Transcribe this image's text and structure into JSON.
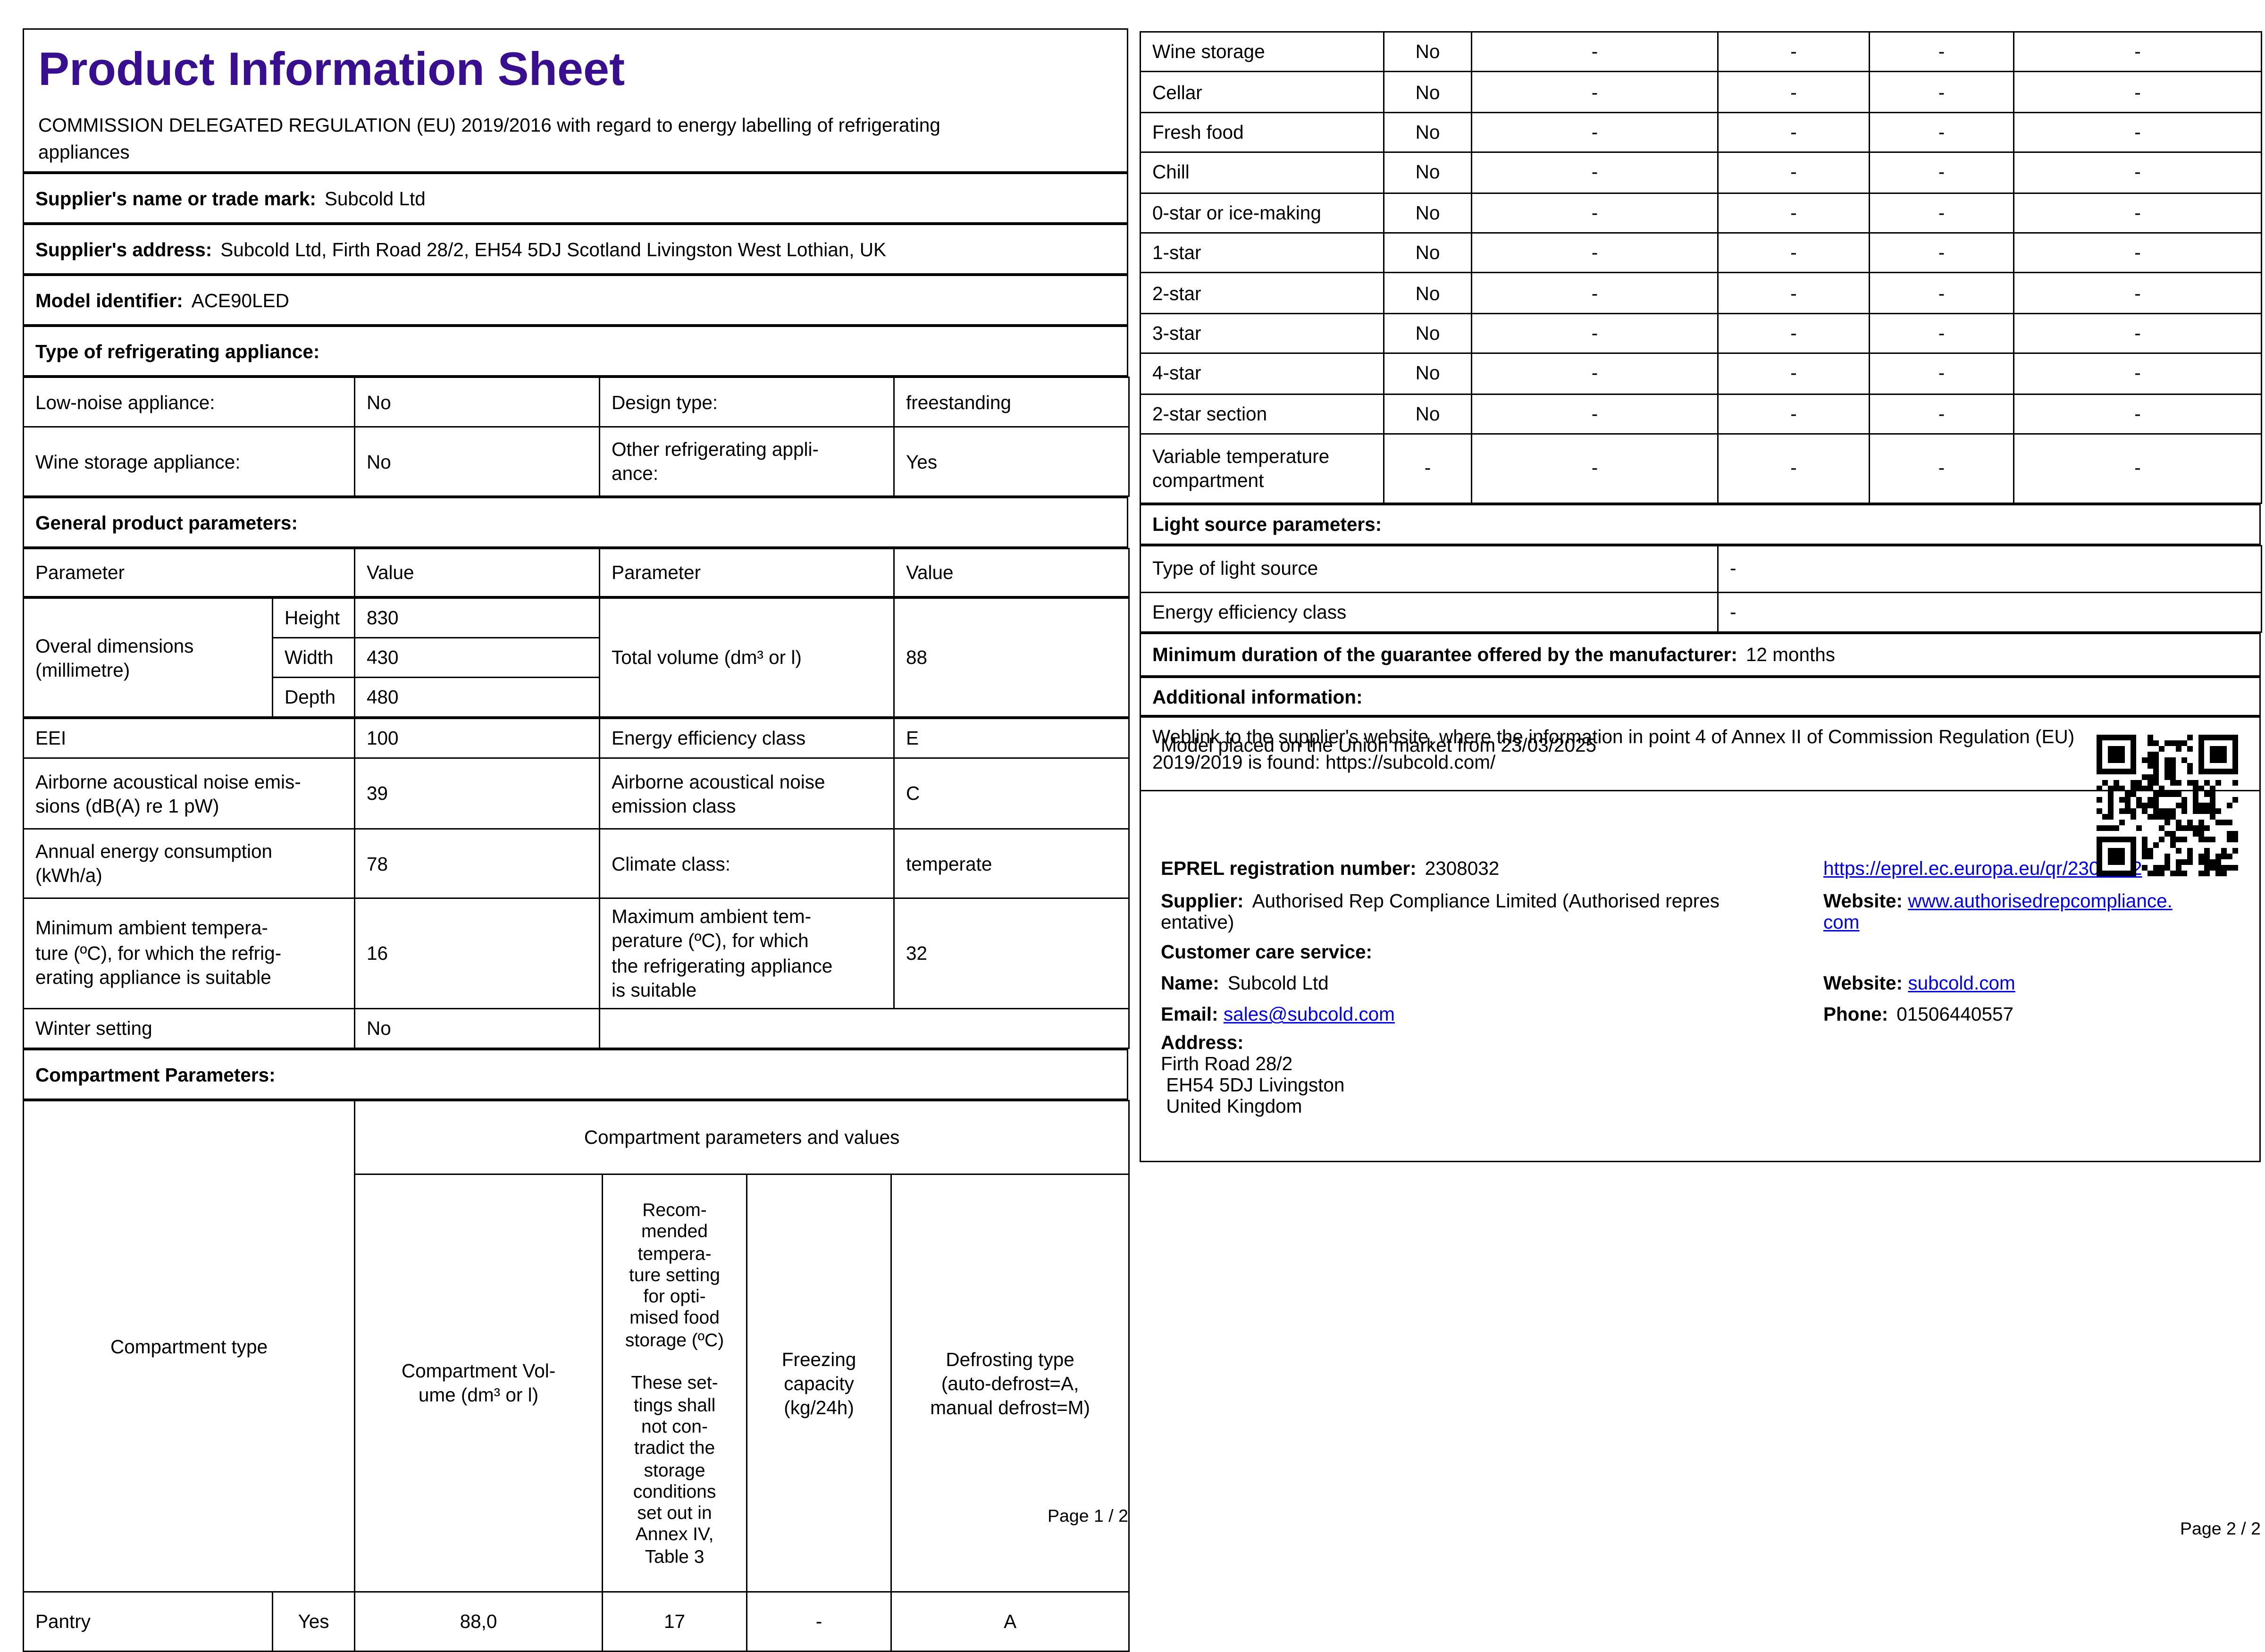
{
  "colors": {
    "title-color": "#38108f",
    "link-color": "#0000ee"
  },
  "page1": {
    "title": "Product Information Sheet",
    "regulation": "COMMISSION DELEGATED REGULATION (EU) 2019/2016 with regard to energy labelling of refrigerating\nappliances",
    "supplier_name_label": "Supplier's name or trade mark:",
    "supplier_name_value": "Subcold Ltd",
    "supplier_address_label": "Supplier's address:",
    "supplier_address_value": "Subcold Ltd, Firth Road 28/2, EH54 5DJ Scotland Livingston West Lothian, UK",
    "model_label": "Model identifier:",
    "model_value": "ACE90LED",
    "type_heading": "Type of refrigerating appliance:",
    "low_noise_label": "Low-noise appliance:",
    "low_noise_value": "No",
    "design_label": "Design type:",
    "design_value": "freestanding",
    "wine_label": "Wine storage appliance:",
    "wine_value": "No",
    "other_label": "Other refrigerating appli-\nance:",
    "other_value": "Yes",
    "general_heading": "General product parameters:",
    "col_param": "Parameter",
    "col_value": "Value",
    "dims_label": "Overal dimensions\n(millimetre)",
    "dims": [
      {
        "name": "Height",
        "value": "830"
      },
      {
        "name": "Width",
        "value": "430"
      },
      {
        "name": "Depth",
        "value": "480"
      }
    ],
    "total_volume_label": "Total volume (dm³ or l)",
    "total_volume_value": "88",
    "rows": [
      {
        "p1": "EEI",
        "v1": "100",
        "p2": "Energy efficiency class",
        "v2": "E"
      },
      {
        "p1": "Airborne acoustical noise emis-\nsions (dB(A) re 1 pW)",
        "v1": "39",
        "p2": "Airborne acoustical noise\nemission class",
        "v2": "C"
      },
      {
        "p1": "Annual energy consumption\n(kWh/a)",
        "v1": "78",
        "p2": "Climate class:",
        "v2": "temperate"
      },
      {
        "p1": "Minimum ambient tempera-\nture (ºC), for which the refrig-\nerating appliance is suitable",
        "v1": "16",
        "p2": "Maximum ambient tem-\nperature (ºC), for which\nthe refrigerating appliance\nis suitable",
        "v2": "32"
      },
      {
        "p1": "Winter setting",
        "v1": "No"
      }
    ],
    "compartment_heading": "Compartment Parameters:",
    "comp_type_header": "Compartment type",
    "comp_group_header": "Compartment parameters and values",
    "comp_col_volume": "Compartment Vol-\nume (dm³ or l)",
    "comp_col_temp": "Recom-\nmended\ntempera-\nture setting\nfor opti-\nmised food\nstorage (ºC)\n\nThese set-\ntings shall\nnot con-\ntradict the\nstorage\nconditions\nset out in\nAnnex IV,\nTable 3",
    "comp_col_freezing": "Freezing\ncapacity\n(kg/24h)",
    "comp_col_defrost": "Defrosting type\n(auto-defrost=A,\nmanual defrost=M)",
    "comp_row": [
      "Pantry",
      "Yes",
      "88,0",
      "17",
      "-",
      "A"
    ],
    "footer": "Page 1 / 2"
  },
  "page2": {
    "compartment_rows": [
      {
        "label": "Wine storage",
        "present": "No",
        "v": [
          "-",
          "-",
          "-",
          "-"
        ]
      },
      {
        "label": "Cellar",
        "present": "No",
        "v": [
          "-",
          "-",
          "-",
          "-"
        ]
      },
      {
        "label": "Fresh food",
        "present": "No",
        "v": [
          "-",
          "-",
          "-",
          "-"
        ]
      },
      {
        "label": "Chill",
        "present": "No",
        "v": [
          "-",
          "-",
          "-",
          "-"
        ]
      },
      {
        "label": "0-star or ice-making",
        "present": "No",
        "v": [
          "-",
          "-",
          "-",
          "-"
        ]
      },
      {
        "label": "1-star",
        "present": "No",
        "v": [
          "-",
          "-",
          "-",
          "-"
        ]
      },
      {
        "label": "2-star",
        "present": "No",
        "v": [
          "-",
          "-",
          "-",
          "-"
        ]
      },
      {
        "label": "3-star",
        "present": "No",
        "v": [
          "-",
          "-",
          "-",
          "-"
        ]
      },
      {
        "label": "4-star",
        "present": "No",
        "v": [
          "-",
          "-",
          "-",
          "-"
        ]
      },
      {
        "label": "2-star section",
        "present": "No",
        "v": [
          "-",
          "-",
          "-",
          "-"
        ]
      },
      {
        "label": "Variable temperature\ncompartment",
        "present": "-",
        "v": [
          "-",
          "-",
          "-",
          "-"
        ]
      }
    ],
    "light_heading": "Light source parameters:",
    "light_rows": [
      {
        "label": "Type of light source",
        "value": "-"
      },
      {
        "label": "Energy efficiency class",
        "value": "-"
      }
    ],
    "guarantee_label": "Minimum duration of the guarantee offered by the manufacturer:",
    "guarantee_value": "12 months",
    "additional_heading": "Additional information:",
    "weblink_text": "Weblink to the supplier's website, where the information in point 4 of Annex II of Commission Regulation (EU)\n2019/2019 is found:  https://subcold.com/",
    "market_text": "Model placed on the Union market from 23/03/2025",
    "eprel_label": "EPREL registration number:",
    "eprel_value": "2308032",
    "eprel_link": "https://eprel.ec.europa.eu/qr/2308032",
    "supplier_label": "Supplier:",
    "supplier_value": "Authorised Rep Compliance Limited (Authorised repres\nentative)",
    "website1_label": "Website:",
    "website1_value": "www.authorisedrepcompliance.\ncom",
    "customer_care_heading": "Customer care service:",
    "name_label": "Name:",
    "name_value": "Subcold Ltd",
    "website2_label": "Website:",
    "website2_value": "subcold.com",
    "email_label": "Email:",
    "email_value": "sales@subcold.com",
    "phone_label": "Phone:",
    "phone_value": "01506440557",
    "address_label": "Address:",
    "address_value": "Firth Road 28/2\n EH54 5DJ Livingston\n United Kingdom",
    "footer": "Page 2 / 2"
  }
}
